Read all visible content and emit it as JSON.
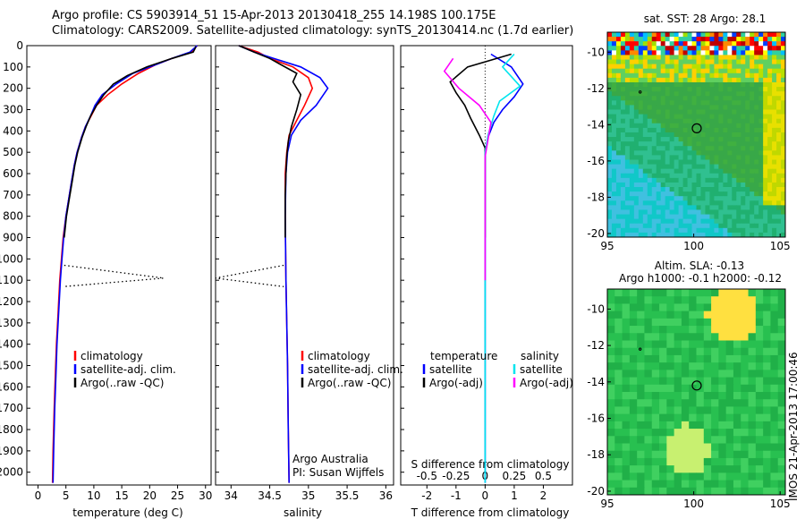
{
  "header": {
    "line1": "Argo profile: CS 5903914_51 15-Apr-2013 20130418_255 14.198S 100.175E",
    "line2": "Climatology: CARS2009. Satellite-adjusted climatology: synTS_20130414.nc (1.7d earlier)"
  },
  "timestamp": "IMOS 21-Apr-2013 17:00:46",
  "colors": {
    "clim": "#ff0000",
    "sat": "#0000ff",
    "argo": "#000000",
    "sat_s": "#00e5ee",
    "argo_s": "#ff00ff"
  },
  "chart_data": [
    {
      "type": "line",
      "id": "temperature",
      "xlabel": "temperature (deg C)",
      "xlim": [
        -2,
        31
      ],
      "ylim": [
        2060,
        0
      ],
      "xticks": [
        "0",
        "5",
        "10",
        "15",
        "20",
        "25",
        "30"
      ],
      "yticks": [
        "0",
        "100",
        "200",
        "300",
        "400",
        "500",
        "600",
        "700",
        "800",
        "900",
        "1000",
        "1100",
        "1200",
        "1300",
        "1400",
        "1500",
        "1600",
        "1700",
        "1800",
        "1900",
        "2000"
      ],
      "legend": [
        "climatology",
        "satellite-adj. clim.",
        "Argo(..raw -QC)"
      ],
      "series": [
        {
          "name": "climatology",
          "color": "clim",
          "x": [
            28.5,
            27.5,
            24,
            21,
            18,
            15,
            12.5,
            10.5,
            9.5,
            8.5,
            7.8,
            7,
            6.5,
            6,
            5.5,
            5,
            4.5,
            4.2,
            3.9,
            3.6,
            3.3,
            3.1,
            2.9,
            2.7,
            2.6
          ],
          "y": [
            0,
            30,
            60,
            90,
            130,
            180,
            230,
            280,
            330,
            380,
            430,
            500,
            560,
            640,
            720,
            800,
            900,
            1000,
            1100,
            1250,
            1400,
            1550,
            1700,
            1900,
            2050
          ]
        },
        {
          "name": "satellite-adj. clim.",
          "color": "sat",
          "x": [
            28.5,
            27.2,
            24,
            21,
            17,
            14,
            11.5,
            10.2,
            9.4,
            8.5,
            7.8,
            7,
            6.5,
            6,
            5.5,
            5,
            4.6,
            4.3,
            4,
            3.7,
            3.4,
            3.2,
            3,
            2.8,
            2.7
          ],
          "y": [
            0,
            30,
            60,
            90,
            130,
            180,
            230,
            280,
            330,
            380,
            430,
            500,
            560,
            640,
            720,
            800,
            900,
            1000,
            1100,
            1250,
            1400,
            1550,
            1700,
            1900,
            2050
          ]
        },
        {
          "name": "Argo(..raw -QC)",
          "color": "argo",
          "x": [
            28.3,
            27.8,
            24,
            19.5,
            16,
            13.5,
            11.8,
            10.5,
            9.4,
            8.6,
            7.9,
            7.1,
            6.6,
            6.1,
            5.6,
            5.1,
            4.7
          ],
          "y": [
            5,
            30,
            60,
            100,
            140,
            180,
            230,
            280,
            330,
            380,
            430,
            500,
            560,
            640,
            720,
            800,
            900
          ]
        }
      ],
      "dotted_spike": {
        "x": [
          4.7,
          22.5,
          4.5
        ],
        "y": [
          1030,
          1090,
          1130
        ]
      }
    },
    {
      "type": "line",
      "id": "salinity",
      "xlabel": "salinity",
      "xlim": [
        33.8,
        36.1
      ],
      "ylim": [
        2060,
        0
      ],
      "xticks": [
        "34",
        "34.5",
        "35",
        "35.5",
        "36"
      ],
      "legend": [
        "climatology",
        "satellite-adj. clim.",
        "Argo(..raw -QC)"
      ],
      "annotations": [
        "Argo Australia",
        "PI: Susan Wijffels"
      ],
      "series": [
        {
          "name": "climatology",
          "color": "clim",
          "x": [
            34.1,
            34.35,
            34.5,
            34.8,
            35.0,
            35.05,
            34.95,
            34.85,
            34.75,
            34.72,
            34.7,
            34.7,
            34.71,
            34.73,
            34.74,
            34.75
          ],
          "y": [
            0,
            30,
            60,
            100,
            150,
            200,
            280,
            350,
            420,
            500,
            600,
            800,
            1100,
            1500,
            1800,
            2050
          ]
        },
        {
          "name": "satellite-adj. clim.",
          "color": "sat",
          "x": [
            34.1,
            34.3,
            34.55,
            34.9,
            35.15,
            35.25,
            35.1,
            34.9,
            34.78,
            34.73,
            34.71,
            34.7,
            34.71,
            34.73,
            34.74,
            34.75
          ],
          "y": [
            0,
            30,
            60,
            100,
            150,
            200,
            280,
            350,
            420,
            500,
            600,
            800,
            1100,
            1500,
            1800,
            2050
          ]
        },
        {
          "name": "Argo(..raw -QC)",
          "color": "argo",
          "x": [
            34.1,
            34.3,
            34.5,
            34.65,
            34.85,
            34.8,
            34.9,
            34.85,
            34.78,
            34.74,
            34.72,
            34.71,
            34.7,
            34.7
          ],
          "y": [
            0,
            30,
            60,
            90,
            130,
            170,
            230,
            300,
            380,
            450,
            520,
            600,
            700,
            900
          ]
        }
      ],
      "dotted_spike": {
        "x": [
          34.68,
          33.8,
          34.68
        ],
        "y": [
          1030,
          1090,
          1130
        ]
      }
    },
    {
      "type": "line",
      "id": "difference",
      "xlabel": "T difference from climatology",
      "xlabel_top": "S difference from climatology",
      "xlim": [
        -2.9,
        3.0
      ],
      "ylim": [
        2060,
        0
      ],
      "xticks": [
        "-2",
        "-1",
        "0",
        "1",
        "2"
      ],
      "xticks_top": [
        "-0.5",
        "-0.25",
        "0",
        "0.25",
        "0.5"
      ],
      "legend_titles": [
        "temperature",
        "salinity"
      ],
      "legend": [
        "satellite",
        "Argo(-adj)",
        "satellite",
        "Argo(-adj)"
      ],
      "series": [
        {
          "name": "satellite",
          "color": "sat",
          "x": [
            0.2,
            0.9,
            1.3,
            1.0,
            0.6,
            0.3,
            0.1,
            0,
            0,
            0,
            0
          ],
          "y": [
            40,
            100,
            180,
            240,
            300,
            360,
            430,
            500,
            600,
            1000,
            2050
          ]
        },
        {
          "name": "Argo(-adj)",
          "color": "argo",
          "x": [
            0.9,
            -0.6,
            -1.2,
            -1.0,
            -0.7,
            -0.5,
            -0.2,
            0,
            0
          ],
          "y": [
            40,
            100,
            170,
            220,
            280,
            340,
            420,
            480,
            900
          ]
        },
        {
          "name": "satellite",
          "color": "sat_s",
          "x": [
            1.0,
            0.6,
            1.2,
            0.5,
            0.3,
            0.1,
            0,
            0
          ],
          "y": [
            40,
            100,
            190,
            260,
            330,
            420,
            500,
            2050
          ]
        },
        {
          "name": "Argo(-adj)",
          "color": "argo_s",
          "x": [
            -1.1,
            -1.4,
            -0.9,
            -0.2,
            0.2,
            0.1,
            0,
            0
          ],
          "y": [
            60,
            120,
            200,
            280,
            360,
            440,
            520,
            1100
          ]
        }
      ]
    },
    {
      "type": "heatmap",
      "id": "sst-map",
      "title": "sat. SST: 28 Argo: 28.1",
      "xlim": [
        95,
        105.3
      ],
      "ylim": [
        -20.2,
        -8.9
      ],
      "xticks": [
        "95",
        "100",
        "105"
      ],
      "yticks": [
        "-10",
        "-12",
        "-14",
        "-16",
        "-18",
        "-20"
      ],
      "argo_position": {
        "lon": 100.175,
        "lat": -14.198
      }
    },
    {
      "type": "heatmap",
      "id": "sla-map",
      "title": "Altim. SLA: -0.13",
      "subtitle": "Argo h1000: -0.1 h2000: -0.12",
      "xlim": [
        95,
        105.3
      ],
      "ylim": [
        -20.2,
        -8.9
      ],
      "xticks": [
        "95",
        "100",
        "105"
      ],
      "yticks": [
        "-10",
        "-12",
        "-14",
        "-16",
        "-18",
        "-20"
      ],
      "argo_position": {
        "lon": 100.175,
        "lat": -14.198
      }
    }
  ]
}
